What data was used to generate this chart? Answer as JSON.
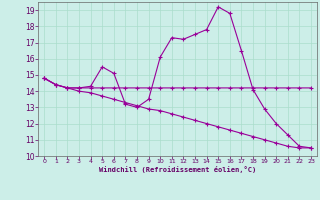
{
  "xlabel": "Windchill (Refroidissement éolien,°C)",
  "bg_color": "#cceee8",
  "grid_color": "#aaddcc",
  "line_color": "#990099",
  "xlim": [
    -0.5,
    23.5
  ],
  "ylim": [
    10,
    19.5
  ],
  "xticks": [
    0,
    1,
    2,
    3,
    4,
    5,
    6,
    7,
    8,
    9,
    10,
    11,
    12,
    13,
    14,
    15,
    16,
    17,
    18,
    19,
    20,
    21,
    22,
    23
  ],
  "yticks": [
    10,
    11,
    12,
    13,
    14,
    15,
    16,
    17,
    18,
    19
  ],
  "curve1_x": [
    0,
    1,
    2,
    3,
    4,
    5,
    6,
    7,
    8,
    9,
    10,
    11,
    12,
    13,
    14,
    15,
    16,
    17,
    18,
    19,
    20,
    21,
    22,
    23
  ],
  "curve1_y": [
    14.8,
    14.4,
    14.2,
    14.2,
    14.3,
    15.5,
    15.1,
    13.2,
    13.0,
    13.5,
    16.1,
    17.3,
    17.2,
    17.5,
    17.8,
    19.2,
    18.8,
    16.5,
    14.1,
    12.9,
    12.0,
    11.3,
    10.6,
    10.5
  ],
  "curve2_x": [
    0,
    1,
    2,
    3,
    4,
    5,
    6,
    7,
    8,
    9,
    10,
    11,
    12,
    13,
    14,
    15,
    16,
    17,
    18,
    19,
    20,
    21,
    22,
    23
  ],
  "curve2_y": [
    14.8,
    14.4,
    14.2,
    14.2,
    14.2,
    14.2,
    14.2,
    14.2,
    14.2,
    14.2,
    14.2,
    14.2,
    14.2,
    14.2,
    14.2,
    14.2,
    14.2,
    14.2,
    14.2,
    14.2,
    14.2,
    14.2,
    14.2,
    14.2
  ],
  "curve3_x": [
    0,
    1,
    2,
    3,
    4,
    5,
    6,
    7,
    8,
    9,
    10,
    11,
    12,
    13,
    14,
    15,
    16,
    17,
    18,
    19,
    20,
    21,
    22,
    23
  ],
  "curve3_y": [
    14.8,
    14.4,
    14.2,
    14.0,
    13.9,
    13.7,
    13.5,
    13.3,
    13.1,
    12.9,
    12.8,
    12.6,
    12.4,
    12.2,
    12.0,
    11.8,
    11.6,
    11.4,
    11.2,
    11.0,
    10.8,
    10.6,
    10.5,
    10.5
  ]
}
